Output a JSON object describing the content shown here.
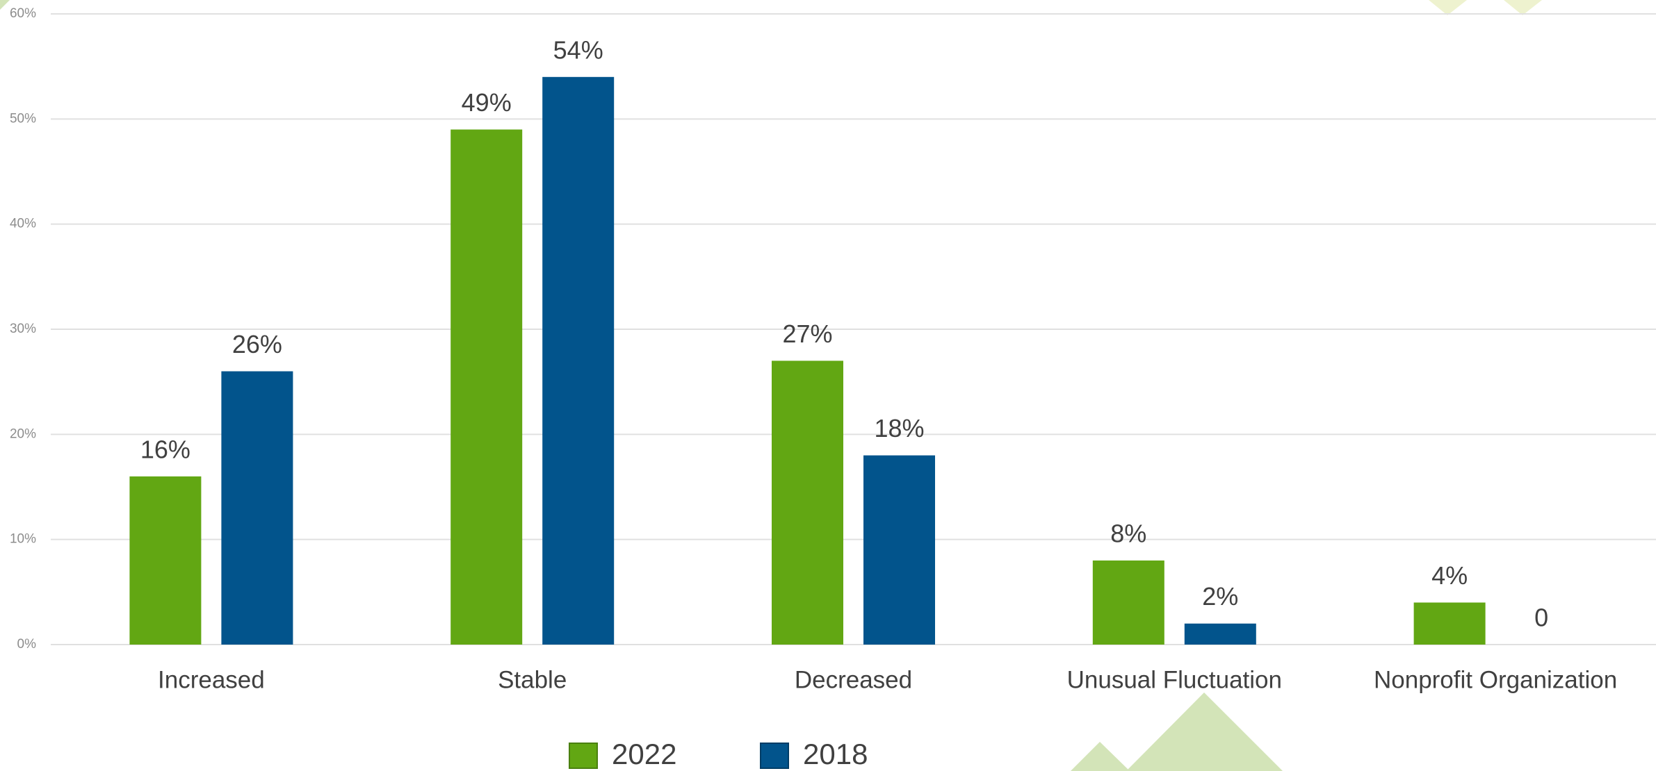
{
  "chart_data": {
    "type": "bar",
    "categories": [
      "Increased",
      "Stable",
      "Decreased",
      "Unusual Fluctuation",
      "Nonprofit Organization"
    ],
    "series": [
      {
        "name": "2022",
        "color": "#62a713",
        "values": [
          16,
          49,
          27,
          8,
          4
        ],
        "value_labels": [
          "16%",
          "49%",
          "27%",
          "8%",
          "4%"
        ]
      },
      {
        "name": "2018",
        "color": "#02548c",
        "values": [
          26,
          54,
          18,
          2,
          0
        ],
        "value_labels": [
          "26%",
          "54%",
          "18%",
          "2%",
          "0"
        ]
      }
    ],
    "ylim": [
      0,
      60
    ],
    "yticks": [
      {
        "value": 0,
        "label": "0%"
      },
      {
        "value": 10,
        "label": "10%"
      },
      {
        "value": 20,
        "label": "20%"
      },
      {
        "value": 30,
        "label": "30%"
      },
      {
        "value": 40,
        "label": "40%"
      },
      {
        "value": 50,
        "label": "50%"
      },
      {
        "value": 60,
        "label": "60%"
      }
    ],
    "grid": true,
    "legend": "bottom"
  }
}
